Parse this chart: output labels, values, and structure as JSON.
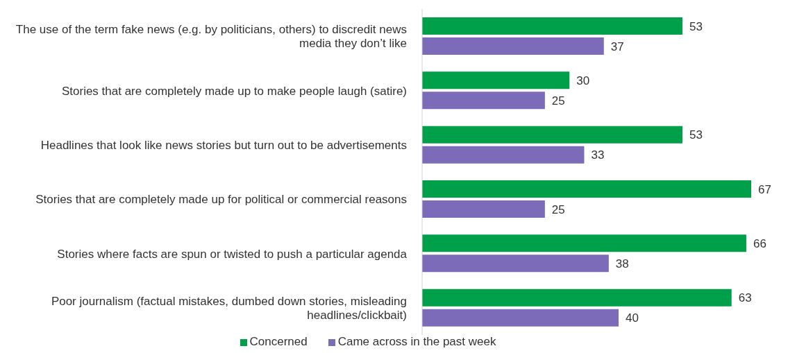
{
  "chart_data": {
    "type": "bar",
    "orientation": "horizontal",
    "categories": [
      "The use of the term fake news (e.g. by politicians, others) to discredit news media they don’t like",
      "Stories that are completely made up to make people laugh (satire)",
      "Headlines that look like news stories but turn out to be advertisements",
      "Stories that are completely made up for political or commercial reasons",
      "Stories where facts are spun or twisted to push a particular agenda",
      "Poor journalism (factual mistakes, dumbed down stories, misleading headlines/clickbait)"
    ],
    "series": [
      {
        "name": "Concerned",
        "color": "#00a04a",
        "values": [
          53,
          30,
          53,
          67,
          66,
          63
        ]
      },
      {
        "name": "Came across in the past week",
        "color": "#7b6bb8",
        "values": [
          37,
          25,
          33,
          25,
          38,
          40
        ]
      }
    ],
    "data_labels": true,
    "legend": "bottom"
  }
}
